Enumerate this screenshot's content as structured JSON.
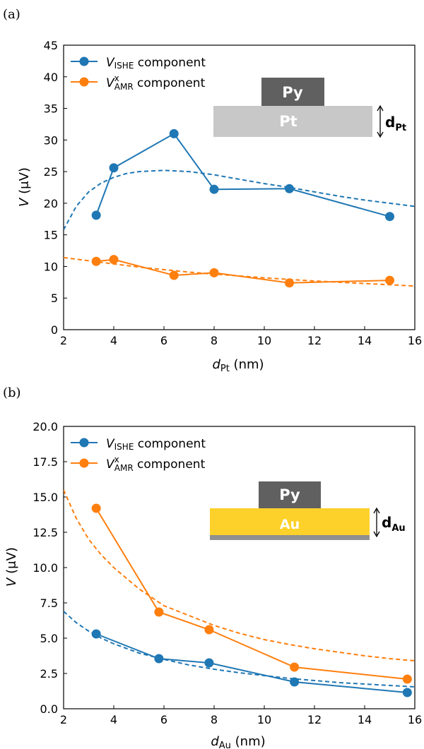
{
  "panels": [
    {
      "label": "(a)",
      "inset": {
        "top": "Py",
        "bottom": "Pt",
        "dim_symbol": "d",
        "dim_sub": "Pt",
        "bottom_color": "#c8c8c8",
        "top_color": "#606060"
      }
    },
    {
      "label": "(b)",
      "inset": {
        "top": "Py",
        "bottom": "Au",
        "dim_symbol": "d",
        "dim_sub": "Au",
        "bottom_color": "#fdd12a",
        "top_color": "#606060",
        "substrate_color": "#909090"
      }
    }
  ],
  "colors": {
    "ishe": "#1f77b4",
    "amr": "#ff7f0e"
  },
  "chart_data": [
    {
      "type": "line",
      "xlabel": "d_Pt (nm)",
      "ylabel": "V (μV)",
      "xlim": [
        2,
        16
      ],
      "ylim": [
        0,
        45
      ],
      "xticks": [
        2,
        4,
        6,
        8,
        10,
        12,
        14,
        16
      ],
      "yticks": [
        0,
        5,
        10,
        15,
        20,
        25,
        30,
        35,
        40,
        45
      ],
      "ytick_labels": [
        "0",
        "5",
        "10",
        "15",
        "20",
        "25",
        "30",
        "35",
        "40",
        "45"
      ],
      "legend_position": "top-left",
      "series": [
        {
          "name": "V_ISHE component",
          "key": "ishe",
          "x": [
            3.3,
            4,
            6.4,
            8,
            11,
            15
          ],
          "y": [
            18.1,
            25.6,
            31.0,
            22.2,
            22.3,
            17.9
          ]
        },
        {
          "name": "V^x_AMR component",
          "key": "amr",
          "x": [
            3.3,
            4,
            6.4,
            8,
            11,
            15
          ],
          "y": [
            10.8,
            11.1,
            8.6,
            9.0,
            7.4,
            7.8
          ]
        }
      ],
      "fits": [
        {
          "key": "ishe",
          "x": [
            2,
            2.5,
            3,
            3.5,
            4,
            4.5,
            5,
            6,
            7,
            8,
            9,
            10,
            11,
            12,
            13,
            14,
            15,
            16
          ],
          "y": [
            15.8,
            19.5,
            21.8,
            23.2,
            24.1,
            24.7,
            25.0,
            25.2,
            25.0,
            24.5,
            23.8,
            23.1,
            22.5,
            21.8,
            21.1,
            20.5,
            20.0,
            19.5
          ]
        },
        {
          "key": "amr",
          "x": [
            2,
            3,
            4,
            5,
            6,
            7,
            8,
            10,
            12,
            14,
            16
          ],
          "y": [
            11.4,
            10.9,
            10.4,
            9.9,
            9.5,
            9.1,
            8.8,
            8.2,
            7.7,
            7.3,
            6.9
          ]
        }
      ]
    },
    {
      "type": "line",
      "xlabel": "d_Au (nm)",
      "ylabel": "V (μV)",
      "xlim": [
        2,
        16
      ],
      "ylim": [
        0,
        20
      ],
      "xticks": [
        2,
        4,
        6,
        8,
        10,
        12,
        14,
        16
      ],
      "yticks": [
        0,
        2.5,
        5,
        7.5,
        10,
        12.5,
        15,
        17.5,
        20
      ],
      "ytick_labels": [
        "0.0",
        "2.5",
        "5.0",
        "7.5",
        "10.0",
        "12.5",
        "15.0",
        "17.5",
        "20.0"
      ],
      "legend_position": "top-left",
      "series": [
        {
          "name": "V_ISHE component",
          "key": "ishe",
          "x": [
            3.3,
            5.8,
            7.8,
            11.2,
            15.7
          ],
          "y": [
            5.3,
            3.55,
            3.25,
            1.9,
            1.15
          ]
        },
        {
          "name": "V^x_AMR component",
          "key": "amr",
          "x": [
            3.3,
            5.8,
            7.8,
            11.2,
            15.7
          ],
          "y": [
            14.2,
            6.85,
            5.6,
            2.95,
            2.1
          ]
        }
      ],
      "fits": [
        {
          "key": "ishe",
          "x": [
            2,
            2.5,
            3,
            3.5,
            4,
            5,
            6,
            7,
            8,
            9,
            10,
            11,
            12,
            13,
            14,
            15,
            16
          ],
          "y": [
            6.9,
            6.1,
            5.5,
            5.0,
            4.6,
            3.95,
            3.5,
            3.1,
            2.8,
            2.55,
            2.35,
            2.15,
            2.0,
            1.85,
            1.75,
            1.65,
            1.55
          ]
        },
        {
          "key": "amr",
          "x": [
            2,
            2.5,
            3,
            3.5,
            4,
            5,
            6,
            7,
            8,
            9,
            10,
            11,
            12,
            13,
            14,
            15,
            16
          ],
          "y": [
            15.5,
            13.5,
            12.0,
            10.9,
            10.0,
            8.5,
            7.3,
            6.6,
            5.9,
            5.35,
            4.9,
            4.55,
            4.25,
            4.0,
            3.75,
            3.55,
            3.4
          ]
        }
      ]
    }
  ]
}
